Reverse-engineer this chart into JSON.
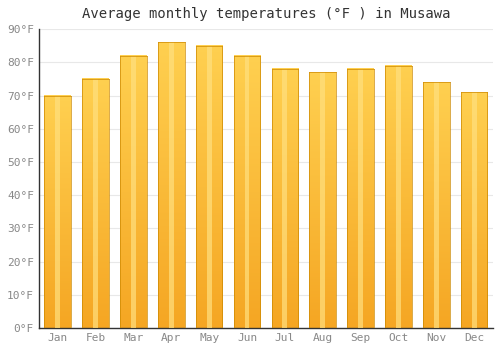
{
  "title": "Average monthly temperatures (°F ) in Musawa",
  "months": [
    "Jan",
    "Feb",
    "Mar",
    "Apr",
    "May",
    "Jun",
    "Jul",
    "Aug",
    "Sep",
    "Oct",
    "Nov",
    "Dec"
  ],
  "values": [
    70,
    75,
    82,
    86,
    85,
    82,
    78,
    77,
    78,
    79,
    74,
    71
  ],
  "bar_color_bottom": "#F5A623",
  "bar_color_top": "#FFD050",
  "bar_color_highlight": "#FFE080",
  "background_color": "#FFFFFF",
  "grid_color": "#E8E8E8",
  "ylim": [
    0,
    90
  ],
  "yticks": [
    0,
    10,
    20,
    30,
    40,
    50,
    60,
    70,
    80,
    90
  ],
  "ylabel_suffix": "°F",
  "title_fontsize": 10,
  "tick_fontsize": 8,
  "bar_width": 0.7
}
